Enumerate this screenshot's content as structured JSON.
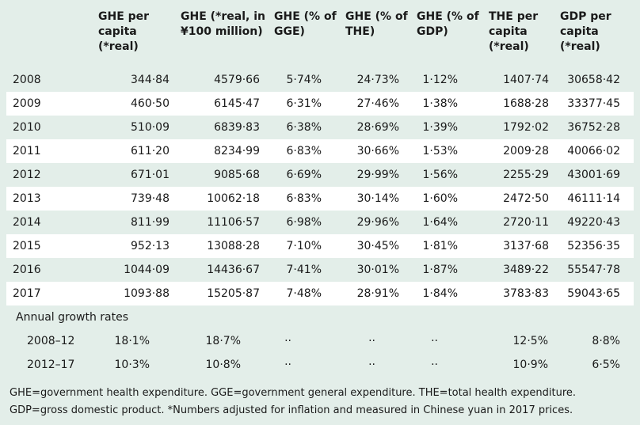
{
  "table": {
    "headers": [
      "",
      "GHE per\ncapita\n(*real)",
      "GHE (*real, in\n¥100 million)",
      "GHE (% of\nGGE)",
      "GHE (% of\nTHE)",
      "GHE (% of\nGDP)",
      "THE per\ncapita\n(*real)",
      "GDP per\ncapita\n(*real)"
    ],
    "rows": [
      [
        "2008",
        "344·84",
        "4579·66",
        "5·74%",
        "24·73%",
        "1·12%",
        "1407·74",
        "30658·42"
      ],
      [
        "2009",
        "460·50",
        "6145·47",
        "6·31%",
        "27·46%",
        "1·38%",
        "1688·28",
        "33377·45"
      ],
      [
        "2010",
        "510·09",
        "6839·83",
        "6·38%",
        "28·69%",
        "1·39%",
        "1792·02",
        "36752·28"
      ],
      [
        "2011",
        "611·20",
        "8234·99",
        "6·83%",
        "30·66%",
        "1·53%",
        "2009·28",
        "40066·02"
      ],
      [
        "2012",
        "671·01",
        "9085·68",
        "6·69%",
        "29·99%",
        "1·56%",
        "2255·29",
        "43001·69"
      ],
      [
        "2013",
        "739·48",
        "10062·18",
        "6·83%",
        "30·14%",
        "1·60%",
        "2472·50",
        "46111·14"
      ],
      [
        "2014",
        "811·99",
        "11106·57",
        "6·98%",
        "29·96%",
        "1·64%",
        "2720·11",
        "49220·43"
      ],
      [
        "2015",
        "952·13",
        "13088·28",
        "7·10%",
        "30·45%",
        "1·81%",
        "3137·68",
        "52356·35"
      ],
      [
        "2016",
        "1044·09",
        "14436·67",
        "7·41%",
        "30·01%",
        "1·87%",
        "3489·22",
        "55547·78"
      ],
      [
        "2017",
        "1093·88",
        "15205·87",
        "7·48%",
        "28·91%",
        "1·84%",
        "3783·83",
        "59043·65"
      ]
    ],
    "section_label": "Annual growth rates",
    "growth_rows": [
      [
        "2008–12",
        "18·1%",
        "18·7%",
        "··",
        "··",
        "··",
        "12·5%",
        "8·8%"
      ],
      [
        "2012–17",
        "10·3%",
        "10·8%",
        "··",
        "··",
        "··",
        "10·9%",
        "6·5%"
      ]
    ]
  },
  "footer": {
    "line1": "GHE=government health expenditure. GGE=government general expenditure. THE=total health expenditure.",
    "line2": "GDP=gross domestic product. *Numbers adjusted for inflation and measured in Chinese yuan in 2017 prices."
  }
}
